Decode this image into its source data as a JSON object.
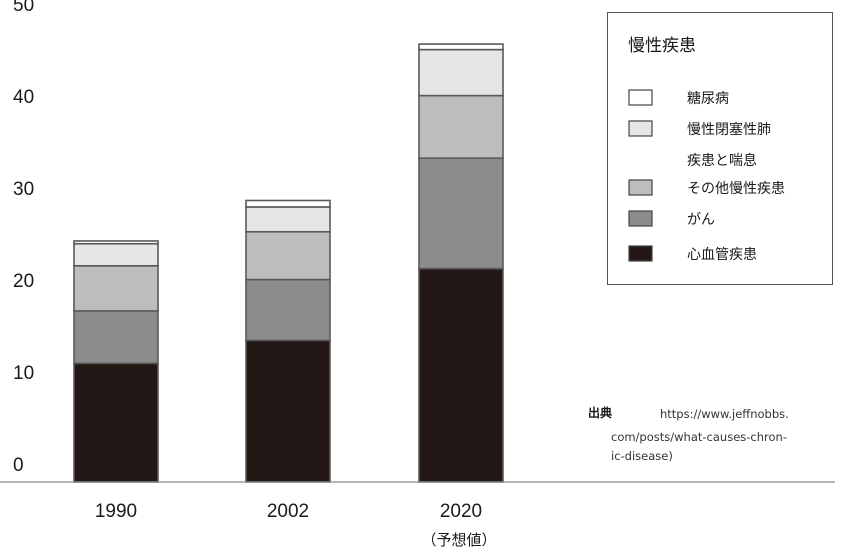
{
  "chart_data": {
    "type": "bar",
    "stacked": true,
    "categories": [
      "1990",
      "2002",
      "2020"
    ],
    "category_notes": [
      "",
      "",
      "（予想値）"
    ],
    "yticks": [
      0,
      10,
      20,
      30,
      40,
      50
    ],
    "ylim": [
      0,
      50
    ],
    "legend": {
      "title": "慢性疾患",
      "placement": "top-right",
      "entries": [
        {
          "label_lines": [
            "糖尿病"
          ],
          "color": "#ffffff"
        },
        {
          "label_lines": [
            "慢性閉塞性肺",
            "疾患と喘息"
          ],
          "color": "#e6e6e6"
        },
        {
          "label_lines": [
            "その他慢性疾患"
          ],
          "color": "#bdbdbd"
        },
        {
          "label_lines": [
            "がん"
          ],
          "color": "#8c8c8c"
        },
        {
          "label_lines": [
            "心血管疾患"
          ],
          "color": "#231815"
        }
      ]
    },
    "series": [
      {
        "name": "心血管疾患",
        "color": "#231815",
        "values": [
          12.9,
          15.4,
          23.2
        ]
      },
      {
        "name": "がん",
        "color": "#8c8c8c",
        "values": [
          5.7,
          6.6,
          12.0
        ]
      },
      {
        "name": "その他慢性疾患",
        "color": "#bdbdbd",
        "values": [
          4.9,
          5.2,
          6.8
        ]
      },
      {
        "name": "慢性閉塞性肺疾患と喘息",
        "color": "#e6e6e6",
        "values": [
          2.4,
          2.7,
          5.0
        ]
      },
      {
        "name": "糖尿病",
        "color": "#ffffff",
        "values": [
          0.3,
          0.7,
          0.6
        ]
      }
    ],
    "source": {
      "label": "出典",
      "lines": [
        "https://www.jeffnobbs.",
        "com/posts/what-causes-chron-",
        "ic-disease)"
      ]
    }
  }
}
